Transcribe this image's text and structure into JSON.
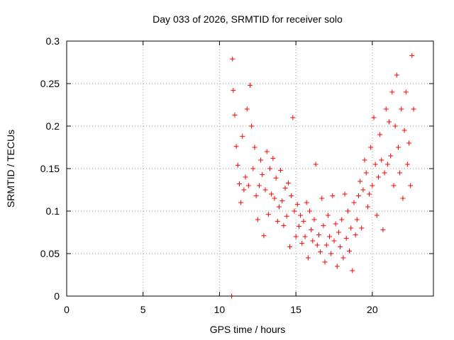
{
  "chart_data": {
    "type": "scatter",
    "title": "Day 033 of 2026, SRMTID for receiver solo",
    "xlabel": "GPS time / hours",
    "ylabel": "SRMTID / TECUs",
    "xlim": [
      0,
      24
    ],
    "ylim": [
      0,
      0.3
    ],
    "x_ticks": [
      "0",
      "5",
      "10",
      "15",
      "20"
    ],
    "y_ticks": [
      "0",
      "0.05",
      "0.1",
      "0.15",
      "0.2",
      "0.25",
      "0.3"
    ],
    "grid": true,
    "legend": "none",
    "marker": "+",
    "color": "#ff0000",
    "series": [
      {
        "x": [
          10.8,
          10.85,
          10.9,
          11.0,
          11.1,
          11.2,
          11.3,
          11.4,
          11.5,
          11.6,
          11.7,
          11.8,
          11.9,
          12.0,
          12.1,
          12.2,
          12.3,
          12.4,
          12.5,
          12.6,
          12.7,
          12.8,
          12.9,
          13.0,
          13.1,
          13.2,
          13.3,
          13.4,
          13.5,
          13.6,
          13.7,
          13.8,
          13.9,
          14.0,
          14.1,
          14.2,
          14.3,
          14.4,
          14.5,
          14.6,
          14.7,
          14.8,
          14.9,
          15.0,
          15.1,
          15.2,
          15.3,
          15.4,
          15.5,
          15.6,
          15.7,
          15.8,
          15.9,
          16.0,
          16.1,
          16.2,
          16.3,
          16.4,
          16.5,
          16.6,
          16.7,
          16.8,
          16.9,
          17.0,
          17.1,
          17.2,
          17.3,
          17.4,
          17.5,
          17.6,
          17.7,
          17.8,
          17.9,
          18.0,
          18.1,
          18.2,
          18.3,
          18.4,
          18.5,
          18.6,
          18.7,
          18.8,
          18.9,
          19.0,
          19.1,
          19.2,
          19.3,
          19.4,
          19.5,
          19.6,
          19.7,
          19.8,
          19.9,
          20.0,
          20.1,
          20.2,
          20.3,
          20.4,
          20.5,
          20.6,
          20.7,
          20.8,
          20.9,
          21.0,
          21.1,
          21.2,
          21.3,
          21.4,
          21.5,
          21.6,
          21.7,
          21.8,
          21.9,
          22.0,
          22.1,
          22.2,
          22.3,
          22.4,
          22.5,
          22.6,
          22.7
        ],
        "y": [
          0.0,
          0.279,
          0.242,
          0.213,
          0.176,
          0.154,
          0.132,
          0.11,
          0.188,
          0.125,
          0.14,
          0.22,
          0.13,
          0.248,
          0.2,
          0.15,
          0.175,
          0.118,
          0.09,
          0.13,
          0.16,
          0.143,
          0.071,
          0.125,
          0.17,
          0.096,
          0.15,
          0.12,
          0.162,
          0.115,
          0.139,
          0.088,
          0.105,
          0.148,
          0.112,
          0.083,
          0.127,
          0.094,
          0.133,
          0.058,
          0.118,
          0.21,
          0.1,
          0.07,
          0.108,
          0.082,
          0.095,
          0.062,
          0.088,
          0.07,
          0.11,
          0.045,
          0.1,
          0.078,
          0.065,
          0.09,
          0.155,
          0.06,
          0.072,
          0.052,
          0.115,
          0.083,
          0.04,
          0.06,
          0.095,
          0.07,
          0.05,
          0.118,
          0.065,
          0.085,
          0.035,
          0.075,
          0.058,
          0.09,
          0.045,
          0.12,
          0.068,
          0.1,
          0.053,
          0.08,
          0.03,
          0.11,
          0.072,
          0.09,
          0.118,
          0.135,
          0.08,
          0.125,
          0.16,
          0.145,
          0.105,
          0.12,
          0.175,
          0.13,
          0.21,
          0.155,
          0.095,
          0.14,
          0.19,
          0.16,
          0.078,
          0.145,
          0.22,
          0.155,
          0.205,
          0.165,
          0.24,
          0.13,
          0.2,
          0.26,
          0.175,
          0.145,
          0.22,
          0.115,
          0.195,
          0.24,
          0.155,
          0.18,
          0.13,
          0.283,
          0.22
        ]
      }
    ]
  }
}
